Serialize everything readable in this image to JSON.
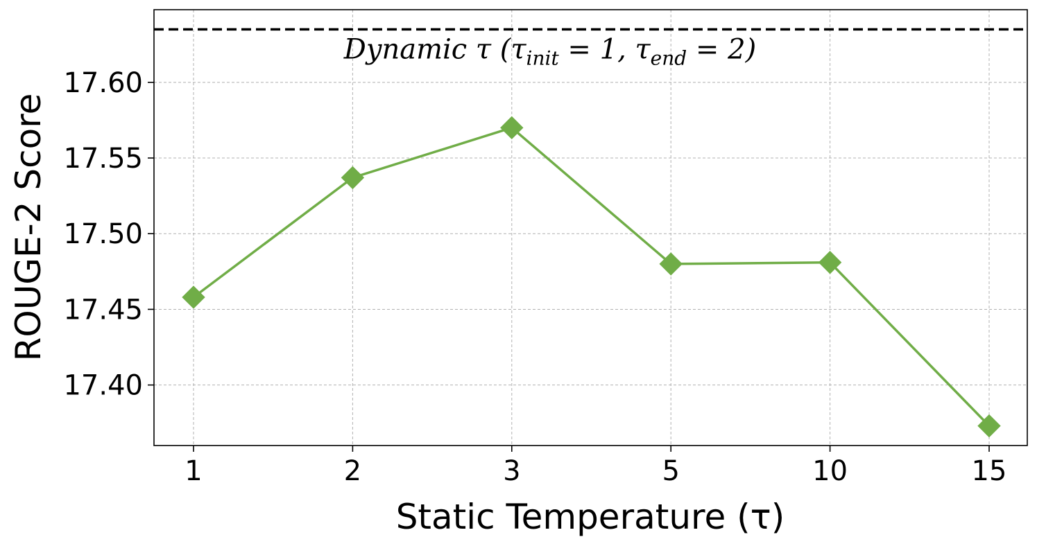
{
  "chart_data": {
    "type": "line",
    "title": "",
    "xlabel": "Static Temperature (τ)",
    "ylabel": "ROUGE-2 Score",
    "categories": [
      "1",
      "2",
      "3",
      "5",
      "10",
      "15"
    ],
    "series": [
      {
        "values": [
          17.458,
          17.537,
          17.57,
          17.48,
          17.481,
          17.373
        ],
        "color": "#70ad47",
        "marker": "diamond"
      }
    ],
    "reference_line": {
      "value": 17.635,
      "style": "dashed",
      "color": "#000000",
      "label": {
        "prefix": "Dynamic τ (τ",
        "sub1": "init",
        "mid": " = 1, τ",
        "sub2": "end",
        "suffix": " = 2)"
      }
    },
    "ylim": [
      17.36,
      17.648
    ],
    "yticks": [
      "17.40",
      "17.45",
      "17.50",
      "17.55",
      "17.60"
    ],
    "grid": true,
    "legend": "none"
  }
}
